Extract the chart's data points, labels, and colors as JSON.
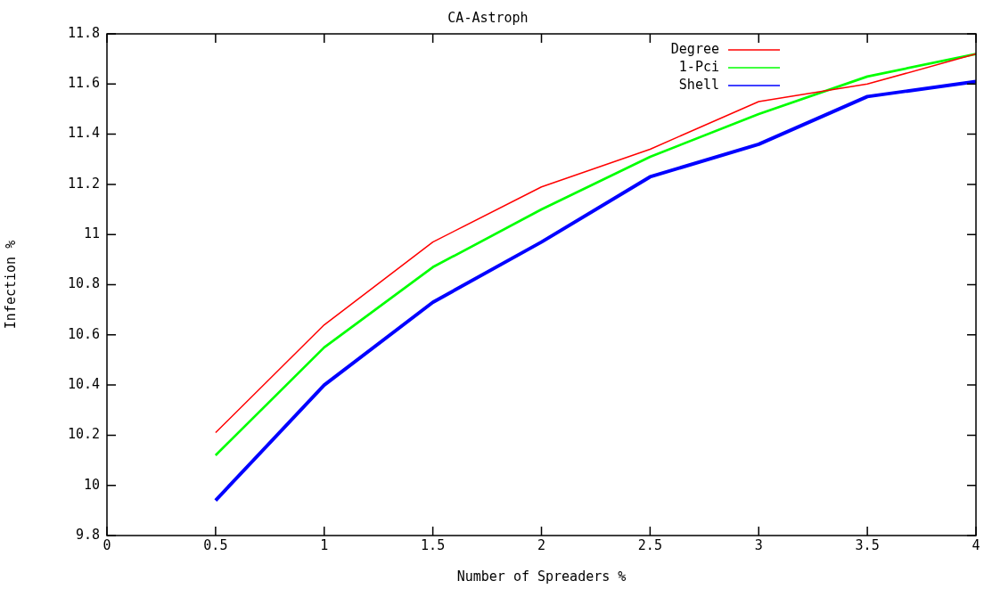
{
  "chart_data": {
    "type": "line",
    "title": "CA-Astroph",
    "xlabel": "Number of Spreaders %",
    "ylabel": "Infection %",
    "x": [
      0.5,
      1,
      1.5,
      2,
      2.5,
      3,
      3.5,
      4
    ],
    "series": [
      {
        "name": "Degree",
        "color": "#ff0000",
        "values": [
          10.21,
          10.64,
          10.97,
          11.19,
          11.34,
          11.53,
          11.6,
          11.72
        ]
      },
      {
        "name": "1-Pci",
        "color": "#00ff00",
        "values": [
          10.12,
          10.55,
          10.87,
          11.1,
          11.31,
          11.48,
          11.63,
          11.72
        ]
      },
      {
        "name": "Shell",
        "color": "#0000ff",
        "values": [
          9.94,
          10.4,
          10.73,
          10.97,
          11.23,
          11.36,
          11.55,
          11.61
        ]
      }
    ],
    "xlim": [
      0,
      4
    ],
    "xticks": [
      0,
      0.5,
      1,
      1.5,
      2,
      2.5,
      3,
      3.5,
      4
    ],
    "ylim": [
      9.8,
      11.8
    ],
    "yticks": [
      9.8,
      10,
      10.2,
      10.4,
      10.6,
      10.8,
      11,
      11.2,
      11.4,
      11.6,
      11.8
    ],
    "grid": false,
    "legend": "top right",
    "marker": "none",
    "line_style": "solid"
  }
}
